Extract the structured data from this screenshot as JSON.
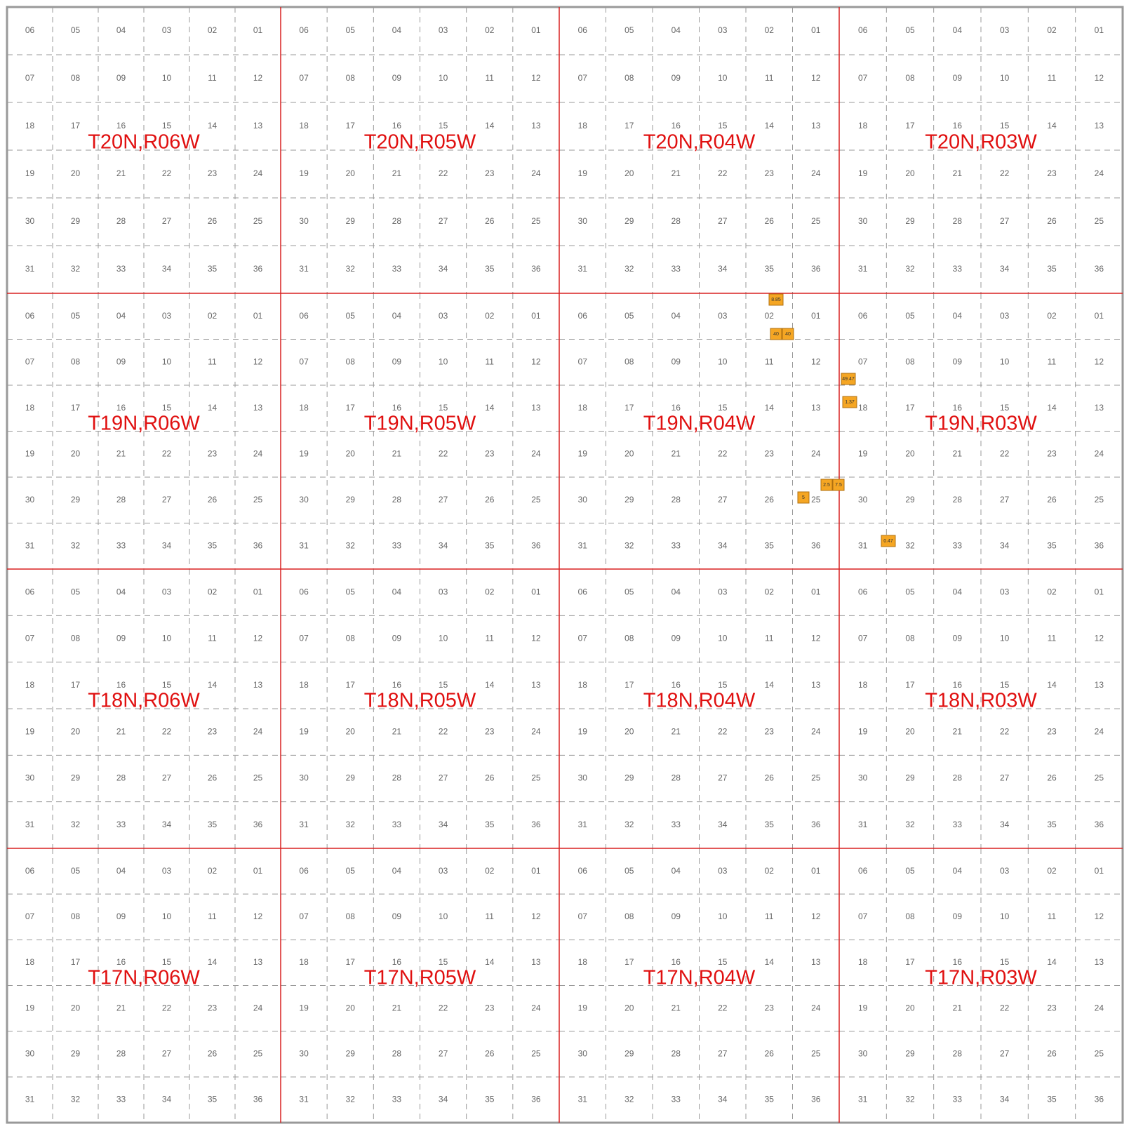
{
  "townships": [
    {
      "label": "T20N,R06W"
    },
    {
      "label": "T20N,R05W"
    },
    {
      "label": "T20N,R04W"
    },
    {
      "label": "T20N,R03W"
    },
    {
      "label": "T19N,R06W"
    },
    {
      "label": "T19N,R05W"
    },
    {
      "label": "T19N,R04W"
    },
    {
      "label": "T19N,R03W"
    },
    {
      "label": "T18N,R06W"
    },
    {
      "label": "T18N,R05W"
    },
    {
      "label": "T18N,R04W"
    },
    {
      "label": "T18N,R03W"
    },
    {
      "label": "T17N,R06W"
    },
    {
      "label": "T17N,R05W"
    },
    {
      "label": "T17N,R04W"
    },
    {
      "label": "T17N,R03W"
    }
  ],
  "section_numbers": [
    "01",
    "02",
    "03",
    "04",
    "05",
    "06",
    "07",
    "08",
    "09",
    "10",
    "11",
    "12",
    "13",
    "14",
    "15",
    "16",
    "17",
    "18",
    "19",
    "20",
    "21",
    "22",
    "23",
    "24",
    "25",
    "26",
    "27",
    "28",
    "29",
    "30",
    "31",
    "32",
    "33",
    "34",
    "35",
    "36"
  ],
  "parcels": [
    {
      "label": "8.85"
    },
    {
      "label": "40"
    },
    {
      "label": "40"
    },
    {
      "label": "49.47"
    },
    {
      "label": "1.37"
    },
    {
      "label": "2.5"
    },
    {
      "label": "7.5"
    },
    {
      "label": "5"
    },
    {
      "label": "0.47"
    }
  ]
}
